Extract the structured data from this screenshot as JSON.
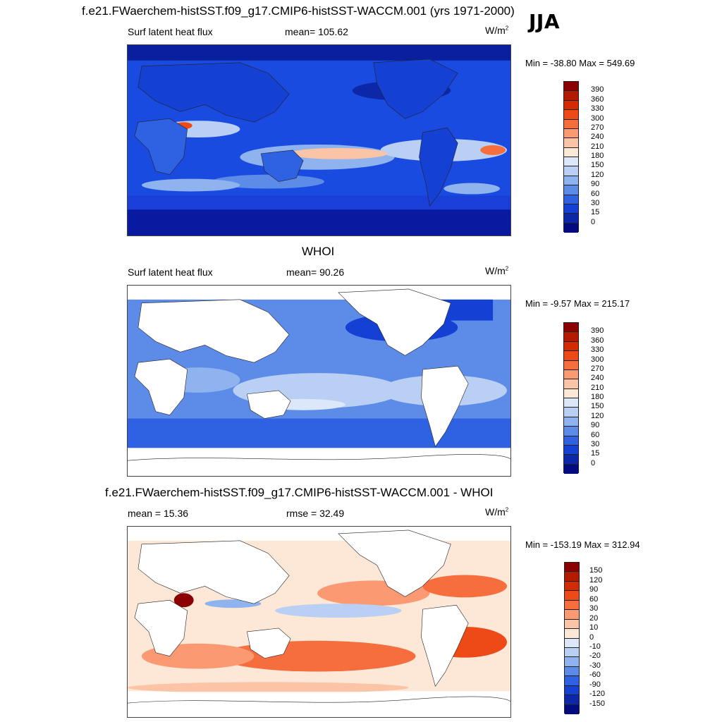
{
  "season": "JJA",
  "units_base": "W/m",
  "units_exp": "2",
  "panels": [
    {
      "title": "f.e21.FWaerchem-histSST.f09_g17.CMIP6-histSST-WACCM.001 (yrs 1971-2000)",
      "left": "Surf latent heat flux",
      "center": "mean= 105.62",
      "minmax": "Min = -38.80 Max = 549.69"
    },
    {
      "title": "WHOI",
      "left": "Surf latent heat flux",
      "center": "mean=  90.26",
      "minmax": "Min =  -9.57 Max = 215.17"
    },
    {
      "title": "f.e21.FWaerchem-histSST.f09_g17.CMIP6-histSST-WACCM.001 - WHOI",
      "left": "mean =  15.36",
      "center": "rmse =  32.49",
      "minmax": "Min = -153.19 Max = 312.94"
    }
  ],
  "colorbars": {
    "abs": {
      "labels": [
        "390",
        "360",
        "330",
        "300",
        "270",
        "240",
        "210",
        "180",
        "150",
        "120",
        "90",
        "60",
        "30",
        "15",
        "0"
      ],
      "colors": [
        "#8b0000",
        "#b31a00",
        "#d42c00",
        "#ee4a18",
        "#f76e3e",
        "#fb9a72",
        "#fcc4a6",
        "#fde7d7",
        "#dce8f9",
        "#b9d0f4",
        "#8fb3ee",
        "#5d8be8",
        "#2f62e3",
        "#1440d4",
        "#0c27a8",
        "#040a80"
      ]
    },
    "diff": {
      "labels": [
        "150",
        "120",
        "90",
        "60",
        "30",
        "20",
        "10",
        "0",
        "-10",
        "-20",
        "-30",
        "-60",
        "-90",
        "-120",
        "-150"
      ],
      "colors": [
        "#8b0000",
        "#b31a00",
        "#d42c00",
        "#ee4a18",
        "#f76e3e",
        "#fb9a72",
        "#fcc4a6",
        "#fde7d7",
        "#dce8f9",
        "#b9d0f4",
        "#8fb3ee",
        "#5d8be8",
        "#2f62e3",
        "#1440d4",
        "#0c27a8",
        "#040a80"
      ]
    }
  }
}
